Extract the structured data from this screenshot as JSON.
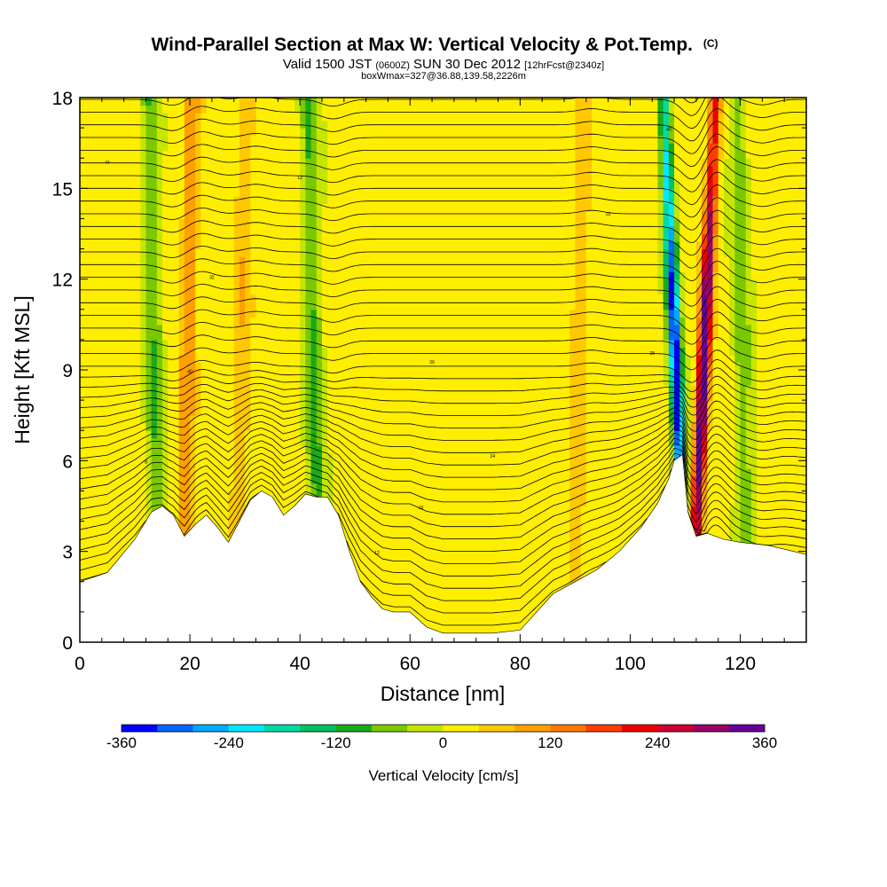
{
  "chart_data": {
    "type": "heatmap",
    "title": "Wind-Parallel Section at Max W: Vertical Velocity & Pot.Temp.",
    "title_mark": "(C)",
    "subtitle_parts": [
      "Valid 1500 JST",
      "(0600Z)",
      "SUN 30 Dec 2012",
      "[12hrFcst@2340z]"
    ],
    "subtitle2": "boxWmax=327@36.88,139.58,2226m",
    "xlabel": "Distance [nm]",
    "ylabel": "Height [Kft MSL]",
    "xlim": [
      0,
      132
    ],
    "ylim": [
      0,
      18
    ],
    "x_ticks": [
      "0",
      "20",
      "40",
      "60",
      "80",
      "100",
      "120"
    ],
    "y_ticks": [
      "0",
      "3",
      "6",
      "9",
      "12",
      "15",
      "18"
    ],
    "colorbar": {
      "label": "Vertical Velocity [cm/s]",
      "tick_labels": [
        "-360",
        "-240",
        "-120",
        "0",
        "120",
        "240",
        "360"
      ],
      "colors": [
        "#0000ff",
        "#0066ff",
        "#00aaff",
        "#00e8ff",
        "#00d9a0",
        "#00c060",
        "#1aaa1a",
        "#7ac800",
        "#c6e600",
        "#ffee00",
        "#ffc800",
        "#ffa000",
        "#ff7800",
        "#ff3c00",
        "#ee0000",
        "#cc0033",
        "#9a0066",
        "#660099"
      ]
    },
    "theta_contour_labels": [
      "8",
      "12",
      "16",
      "20",
      "24",
      "28",
      "32",
      "36",
      "40",
      "44"
    ],
    "terrain_nm_kft": [
      [
        0,
        2
      ],
      [
        5,
        2.3
      ],
      [
        10,
        3.4
      ],
      [
        13,
        4.3
      ],
      [
        15,
        4.5
      ],
      [
        17,
        4.2
      ],
      [
        19,
        3.5
      ],
      [
        21,
        3.9
      ],
      [
        23,
        4.2
      ],
      [
        25,
        3.8
      ],
      [
        27,
        3.3
      ],
      [
        29,
        4
      ],
      [
        31,
        4.7
      ],
      [
        33,
        5
      ],
      [
        35,
        4.8
      ],
      [
        37,
        4.2
      ],
      [
        39,
        4.5
      ],
      [
        41,
        4.9
      ],
      [
        43,
        4.8
      ],
      [
        45,
        4.8
      ],
      [
        47,
        4.2
      ],
      [
        49,
        3
      ],
      [
        51,
        2
      ],
      [
        53,
        1.5
      ],
      [
        55,
        1.1
      ],
      [
        57,
        1
      ],
      [
        60,
        1
      ],
      [
        63,
        0.5
      ],
      [
        66,
        0.3
      ],
      [
        70,
        0.3
      ],
      [
        75,
        0.3
      ],
      [
        80,
        0.4
      ],
      [
        83,
        1
      ],
      [
        86,
        1.6
      ],
      [
        90,
        2
      ],
      [
        94,
        2.4
      ],
      [
        98,
        3
      ],
      [
        102,
        3.8
      ],
      [
        105,
        4.6
      ],
      [
        107,
        5.4
      ],
      [
        108,
        6
      ],
      [
        109.5,
        6.2
      ],
      [
        110.5,
        4.3
      ],
      [
        112,
        3.5
      ],
      [
        114,
        3.6
      ],
      [
        117,
        3.4
      ],
      [
        120,
        3.3
      ],
      [
        125,
        3.2
      ],
      [
        132,
        2.9
      ]
    ],
    "w_features": [
      {
        "x": 14,
        "w": -90
      },
      {
        "x": 19,
        "w": 90
      },
      {
        "x": 29,
        "w": 60
      },
      {
        "x": 43,
        "w": -100
      },
      {
        "x": 90,
        "w": 50
      },
      {
        "x": 109,
        "w": -327
      },
      {
        "x": 112,
        "w": 327
      },
      {
        "x": 121,
        "w": -80
      }
    ]
  }
}
